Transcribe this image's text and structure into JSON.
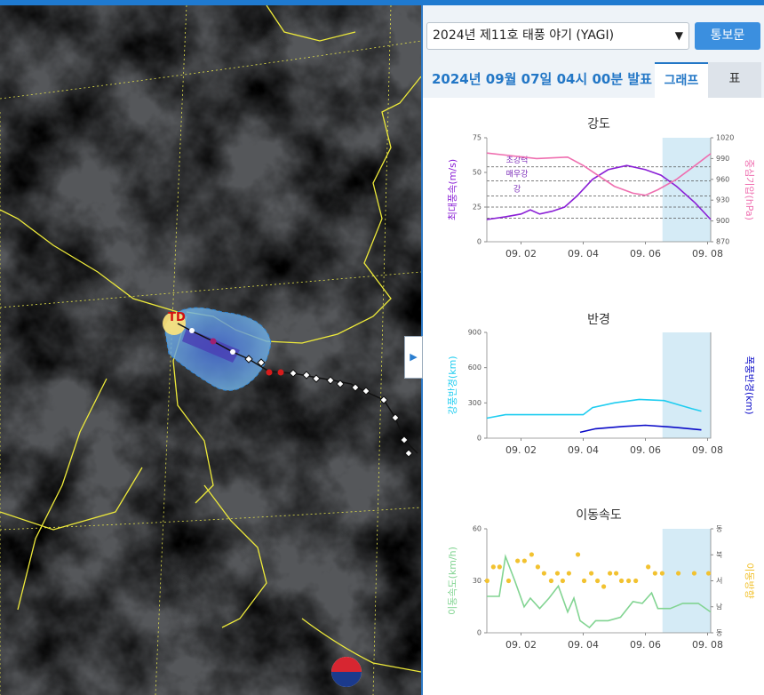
{
  "ui": {
    "typhoon_select": "2024년 제11호 태풍 야기 (YAGI)",
    "report_button": "통보문",
    "announcement": "2024년 09월 07일 04시 00분 발표",
    "tabs": [
      "그래프",
      "표"
    ],
    "active_tab": 0,
    "map_label": "TD"
  },
  "chart_data": [
    {
      "type": "line",
      "title": "강도",
      "ylabel": "최대풍속(m/s)",
      "y2label": "중심기압(hPa)",
      "xlim": [
        0.9,
        8.1
      ],
      "xticks": [
        {
          "value": 2,
          "label": "09. 02"
        },
        {
          "value": 4,
          "label": "09. 04"
        },
        {
          "value": 6,
          "label": "09. 06"
        },
        {
          "value": 8,
          "label": "09. 08"
        }
      ],
      "ylim": [
        0,
        75
      ],
      "yticks": [
        0,
        25,
        50,
        75
      ],
      "y2lim": [
        870,
        1020
      ],
      "y2ticks": [
        870,
        900,
        930,
        960,
        990,
        1020
      ],
      "forecast_range": [
        6.55,
        8.1
      ],
      "reference_lines": [
        {
          "value": 54,
          "label": "초강력"
        },
        {
          "value": 44,
          "label": "매우강"
        },
        {
          "value": 33,
          "label": "강"
        },
        {
          "value": 25
        },
        {
          "value": 17
        }
      ],
      "series": [
        {
          "name": "최대풍속",
          "color": "#8a1fd6",
          "x": [
            0.9,
            1.5,
            2.0,
            2.3,
            2.6,
            3.0,
            3.4,
            3.8,
            4.3,
            4.8,
            5.4,
            6.0,
            6.5,
            7.0,
            7.6,
            8.1
          ],
          "values": [
            16,
            18,
            20,
            23,
            20,
            22,
            25,
            33,
            45,
            52,
            55,
            52,
            48,
            40,
            28,
            16
          ]
        },
        {
          "name": "중심기압",
          "color": "#ef6fb0",
          "axis": "y2",
          "x": [
            0.9,
            1.5,
            2.5,
            3.5,
            4.0,
            4.5,
            5.0,
            5.6,
            6.0,
            6.4,
            7.0,
            7.6,
            8.1
          ],
          "values": [
            998,
            995,
            990,
            992,
            980,
            965,
            950,
            940,
            937,
            945,
            960,
            980,
            997
          ]
        }
      ]
    },
    {
      "type": "line",
      "title": "반경",
      "ylabel": "강풍반경(km)",
      "y2label": "폭풍반경(km)",
      "xlim": [
        0.9,
        8.1
      ],
      "xticks": [
        {
          "value": 2,
          "label": "09. 02"
        },
        {
          "value": 4,
          "label": "09. 04"
        },
        {
          "value": 6,
          "label": "09. 06"
        },
        {
          "value": 8,
          "label": "09. 08"
        }
      ],
      "ylim": [
        0,
        900
      ],
      "yticks": [
        0,
        300,
        600,
        900
      ],
      "y2lim": [
        0,
        900
      ],
      "forecast_range": [
        6.55,
        8.1
      ],
      "series": [
        {
          "name": "강풍반경",
          "color": "#1fcdf0",
          "x": [
            0.9,
            1.5,
            2.0,
            4.0,
            4.3,
            5.0,
            5.8,
            6.6,
            7.5,
            7.8
          ],
          "values": [
            170,
            200,
            200,
            200,
            260,
            300,
            330,
            320,
            250,
            230
          ]
        },
        {
          "name": "폭풍반경",
          "color": "#0a0ac8",
          "axis": "y2",
          "x": [
            3.9,
            4.4,
            5.3,
            6.0,
            6.8,
            7.8
          ],
          "values": [
            50,
            80,
            100,
            110,
            95,
            70
          ]
        }
      ]
    },
    {
      "type": "line",
      "title": "이동속도",
      "ylabel": "이동속도(km/h)",
      "y2label": "이동방향",
      "xlim": [
        0.9,
        8.1
      ],
      "xticks": [
        {
          "value": 2,
          "label": "09. 02"
        },
        {
          "value": 4,
          "label": "09. 04"
        },
        {
          "value": 6,
          "label": "09. 06"
        },
        {
          "value": 8,
          "label": "09. 08"
        }
      ],
      "ylim": [
        0,
        60
      ],
      "yticks": [
        0,
        30,
        60
      ],
      "y2lim": [
        0,
        360
      ],
      "y2ticks": [
        {
          "value": 360,
          "label": "동"
        },
        {
          "value": 270,
          "label": "북"
        },
        {
          "value": 180,
          "label": "서"
        },
        {
          "value": 90,
          "label": "남"
        },
        {
          "value": 0,
          "label": "동"
        }
      ],
      "forecast_range": [
        6.55,
        8.1
      ],
      "series": [
        {
          "name": "이동속도",
          "color": "#82d492",
          "x": [
            0.9,
            1.3,
            1.5,
            1.8,
            2.1,
            2.3,
            2.6,
            2.9,
            3.2,
            3.5,
            3.7,
            3.9,
            4.2,
            4.4,
            4.8,
            5.2,
            5.6,
            5.9,
            6.2,
            6.4,
            6.8,
            7.2,
            7.7,
            8.1
          ],
          "values": [
            21,
            21,
            44,
            30,
            15,
            20,
            14,
            20,
            27,
            12,
            20,
            7,
            3,
            7,
            7,
            9,
            18,
            17,
            23,
            14,
            14,
            17,
            17,
            12
          ]
        },
        {
          "name": "이동방향",
          "color": "#f2c230",
          "axis": "y2",
          "mode": "markers",
          "x": [
            0.91,
            1.11,
            1.31,
            1.6,
            1.89,
            2.11,
            2.34,
            2.54,
            2.74,
            2.97,
            3.17,
            3.34,
            3.54,
            3.83,
            4.03,
            4.26,
            4.46,
            4.66,
            4.86,
            5.06,
            5.23,
            5.46,
            5.69,
            6.09,
            6.31,
            6.54,
            7.06,
            7.57,
            8.03
          ],
          "values": [
            180,
            228,
            228,
            180,
            249,
            249,
            271,
            228,
            206,
            180,
            206,
            180,
            206,
            271,
            180,
            206,
            180,
            160,
            206,
            206,
            180,
            180,
            180,
            228,
            206,
            206,
            206,
            206,
            206
          ]
        }
      ]
    }
  ]
}
